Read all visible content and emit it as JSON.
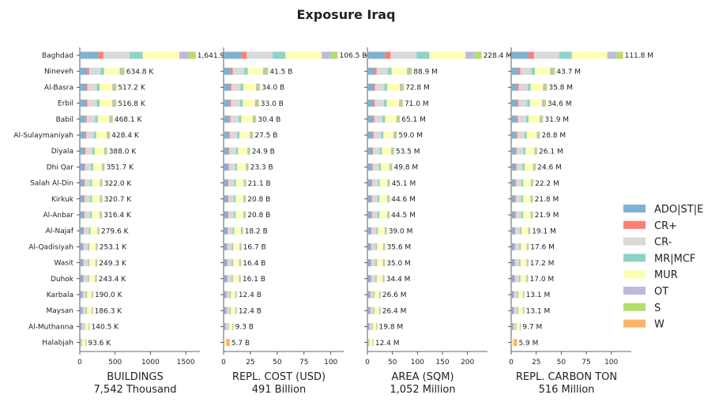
{
  "title": "Exposure Iraq",
  "regions": [
    "Baghdad",
    "Nineveh",
    "Al-Basra",
    "Erbil",
    "Babil",
    "Al-Sulaymaniyah",
    "Diyala",
    "Dhi Qar",
    "Salah Al-Din",
    "Kirkuk",
    "Al-Anbar",
    "Al-Najaf",
    "Al-Qadisiyah",
    "Wasit",
    "Duhok",
    "Karbala",
    "Maysan",
    "Al-Muthanna",
    "Halabjah"
  ],
  "legend": [
    {
      "name": "ADO|ST|E",
      "color": "#80b1d3"
    },
    {
      "name": "CR+",
      "color": "#fb8072"
    },
    {
      "name": "CR-",
      "color": "#d9d9d9"
    },
    {
      "name": "MR|MCF",
      "color": "#8dd3c7"
    },
    {
      "name": "MUR",
      "color": "#ffffb3"
    },
    {
      "name": "OT",
      "color": "#bebada"
    },
    {
      "name": "S",
      "color": "#b3de69"
    },
    {
      "name": "W",
      "color": "#fdb462"
    }
  ],
  "chart_data": [
    {
      "type": "bar",
      "stacked": true,
      "orientation": "horizontal",
      "xlabel": "BUILDINGS",
      "total_label": "7,542 Thousand",
      "xlim": [
        0,
        1700
      ],
      "xticks": [
        0,
        500,
        1000,
        1500
      ],
      "values": [
        1641.9,
        634.8,
        517.2,
        516.8,
        468.1,
        428.4,
        388.0,
        351.7,
        322.0,
        320.7,
        316.4,
        279.6,
        253.1,
        249.3,
        243.4,
        190.0,
        186.3,
        140.5,
        93.6
      ],
      "labels": [
        "1,641.9",
        "634.8 K",
        "517.2 K",
        "516.8 K",
        "468.1 K",
        "428.4 K",
        "388.0 K",
        "351.7 K",
        "322.0 K",
        "320.7 K",
        "316.4 K",
        "279.6 K",
        "253.1 K",
        "249.3 K",
        "243.4 K",
        "190.0 K",
        "186.3 K",
        "140.5 K",
        "93.6 K"
      ]
    },
    {
      "type": "bar",
      "stacked": true,
      "orientation": "horizontal",
      "xlabel": "REPL. COST (USD)",
      "total_label": "491 Billion",
      "xlim": [
        0,
        112
      ],
      "xticks": [
        0,
        25,
        50,
        75,
        100
      ],
      "values": [
        106.5,
        41.5,
        34.0,
        33.0,
        30.4,
        27.5,
        24.9,
        23.3,
        21.1,
        20.8,
        20.8,
        18.2,
        16.7,
        16.4,
        16.1,
        12.4,
        12.4,
        9.3,
        5.7
      ],
      "labels": [
        "106.5 B",
        "41.5 B",
        "34.0 B",
        "33.0 B",
        "30.4 B",
        "27.5 B",
        "24.9 B",
        "23.3 B",
        "21.1 B",
        "20.8 B",
        "20.8 B",
        "18.2 B",
        "16.7 B",
        "16.4 B",
        "16.1 B",
        "12.4 B",
        "12.4 B",
        "9.3 B",
        "5.7 B"
      ]
    },
    {
      "type": "bar",
      "stacked": true,
      "orientation": "horizontal",
      "xlabel": "AREA (SQM)",
      "total_label": "1,052 Million",
      "xlim": [
        0,
        240
      ],
      "xticks": [
        0,
        50,
        100,
        150,
        200
      ],
      "values": [
        228.4,
        88.9,
        72.8,
        71.0,
        65.1,
        59.0,
        53.5,
        49.8,
        45.1,
        44.6,
        44.5,
        39.0,
        35.6,
        35.0,
        34.4,
        26.6,
        26.4,
        19.8,
        12.4
      ],
      "labels": [
        "228.4 M",
        "88.9 M",
        "72.8 M",
        "71.0 M",
        "65.1 M",
        "59.0 M",
        "53.5 M",
        "49.8 M",
        "45.1 M",
        "44.6 M",
        "44.5 M",
        "39.0 M",
        "35.6 M",
        "35.0 M",
        "34.4 M",
        "26.6 M",
        "26.4 M",
        "19.8 M",
        "12.4 M"
      ]
    },
    {
      "type": "bar",
      "stacked": true,
      "orientation": "horizontal",
      "xlabel": "REPL. CARBON TON",
      "total_label": "516 Million",
      "xlim": [
        0,
        120
      ],
      "xticks": [
        0,
        25,
        50,
        75,
        100
      ],
      "values": [
        111.8,
        43.7,
        35.8,
        34.6,
        31.9,
        28.8,
        26.1,
        24.6,
        22.2,
        21.8,
        21.9,
        19.1,
        17.6,
        17.2,
        17.0,
        13.1,
        13.1,
        9.7,
        5.9
      ],
      "labels": [
        "111.8 M",
        "43.7 M",
        "35.8 M",
        "34.6 M",
        "31.9 M",
        "28.8 M",
        "26.1 M",
        "24.6 M",
        "22.2 M",
        "21.8 M",
        "21.9 M",
        "19.1 M",
        "17.6 M",
        "17.2 M",
        "17.0 M",
        "13.1 M",
        "13.1 M",
        "9.7 M",
        "5.9 M"
      ]
    }
  ],
  "segment_shares": {
    "default": [
      0.14,
      0.04,
      0.22,
      0.07,
      0.3,
      0.05,
      0.04,
      0.005
    ],
    "Baghdad": [
      0.14,
      0.04,
      0.2,
      0.1,
      0.28,
      0.07,
      0.05,
      0.005
    ],
    "Halabjah": [
      0.12,
      0.04,
      0.12,
      0.08,
      0.44,
      0.05,
      0.1,
      0.01
    ],
    "Halabjah-cost": [
      0.06,
      0.02,
      0.08,
      0.04,
      0.2,
      0.02,
      0.02,
      0.56
    ]
  }
}
